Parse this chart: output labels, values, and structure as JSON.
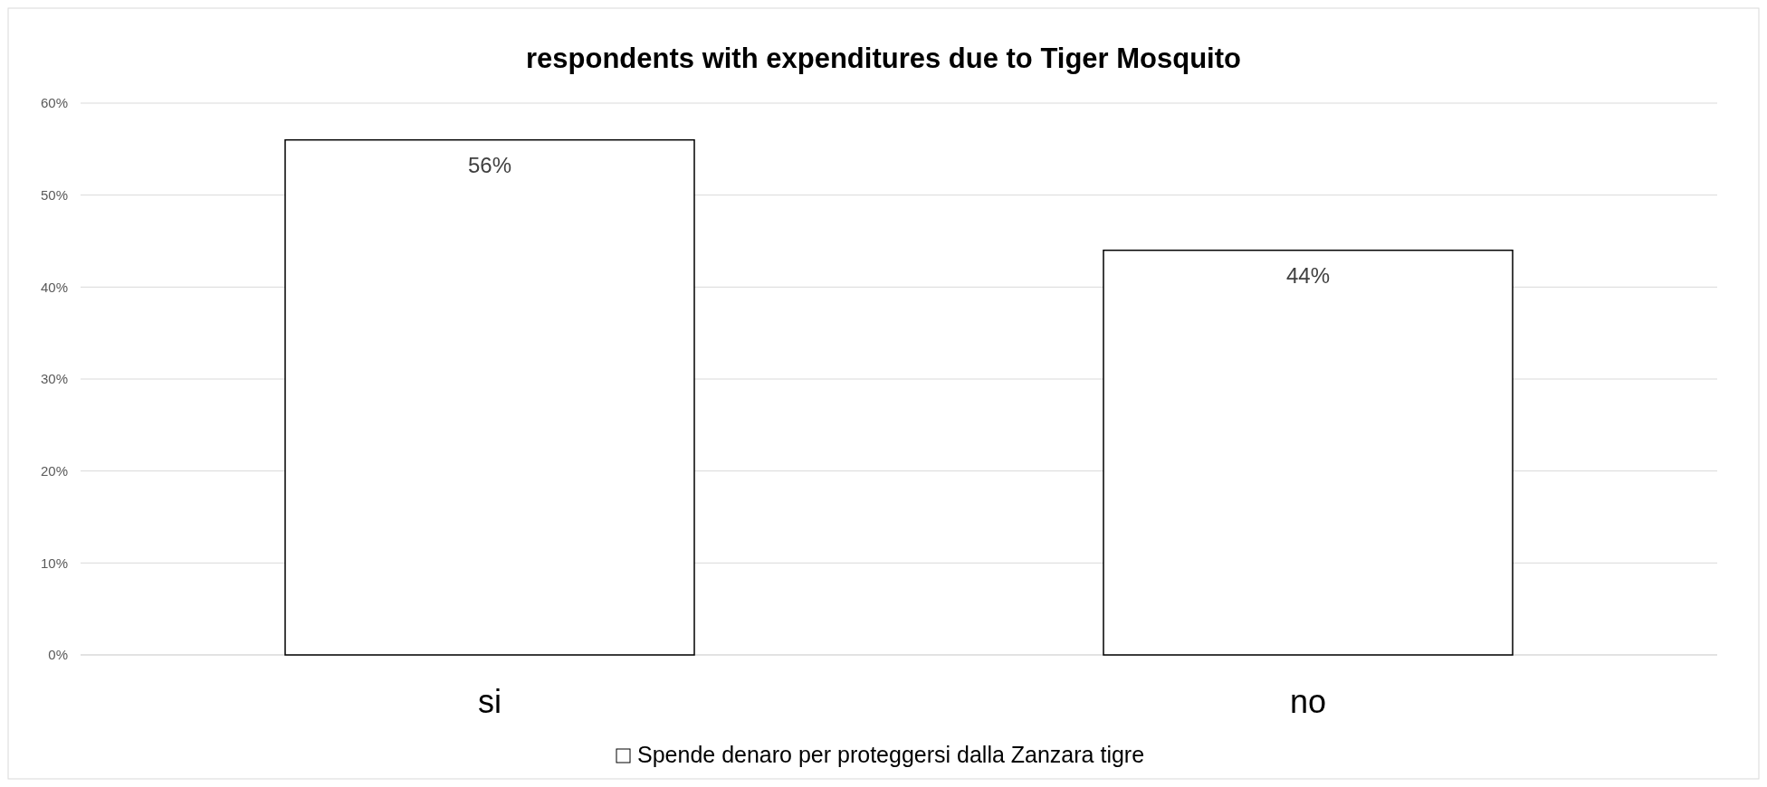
{
  "chart_data": {
    "type": "bar",
    "title": "respondents with expenditures due to Tiger Mosquito",
    "categories": [
      "si",
      "no"
    ],
    "series": [
      {
        "name": "Spende denaro per proteggersi dalla Zanzara tigre",
        "color": "#ffffff",
        "values": [
          56,
          44
        ],
        "value_labels": [
          "56%",
          "44%"
        ]
      }
    ],
    "ylim": [
      0,
      60
    ],
    "yticks": [
      {
        "value": 0,
        "label": "0%"
      },
      {
        "value": 10,
        "label": "10%"
      },
      {
        "value": 20,
        "label": "20%"
      },
      {
        "value": 30,
        "label": "30%"
      },
      {
        "value": 40,
        "label": "40%"
      },
      {
        "value": 50,
        "label": "50%"
      },
      {
        "value": 60,
        "label": "60%"
      }
    ],
    "grid": "y",
    "legend": "bottom"
  }
}
